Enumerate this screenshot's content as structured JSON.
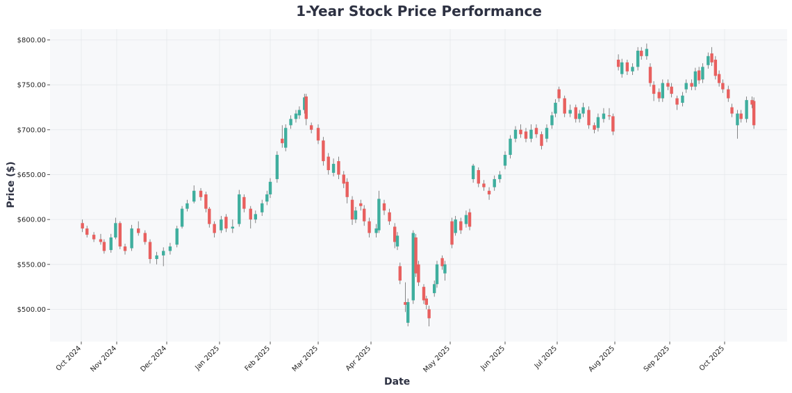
{
  "chart_data": {
    "type": "candlestick",
    "title": "1-Year Stock Price Performance",
    "xlabel": "Date",
    "ylabel": "Price ($)",
    "ylim": [
      464,
      812
    ],
    "yticks": [
      "$500.00",
      "$550.00",
      "$600.00",
      "$650.00",
      "$700.00",
      "$750.00",
      "$800.00"
    ],
    "ytick_values": [
      500,
      550,
      600,
      650,
      700,
      750,
      800
    ],
    "xticks": [
      {
        "date": "2024-10-01",
        "label": "Oct 2024"
      },
      {
        "date": "2024-11-01",
        "label": "Nov 2024"
      },
      {
        "date": "2024-12-01",
        "label": "Dec 2024"
      },
      {
        "date": "2025-01-01",
        "label": "Jan 2025"
      },
      {
        "date": "2025-02-01",
        "label": "Feb 2025"
      },
      {
        "date": "2025-03-01",
        "label": "Mar 2025"
      },
      {
        "date": "2025-04-01",
        "label": "Apr 2025"
      },
      {
        "date": "2025-05-01",
        "label": "May 2025"
      },
      {
        "date": "2025-06-01",
        "label": "Jun 2025"
      },
      {
        "date": "2025-07-01",
        "label": "Jul 2025"
      },
      {
        "date": "2025-08-01",
        "label": "Aug 2025"
      },
      {
        "date": "2025-09-01",
        "label": "Sep 2025"
      },
      {
        "date": "2025-10-01",
        "label": "Oct 2025"
      }
    ],
    "grid": true,
    "colors": {
      "up": "#3fae9e",
      "down": "#e8605f",
      "background": "#f7f8fa"
    },
    "columns": [
      "date",
      "open",
      "high",
      "low",
      "close"
    ],
    "candles": [
      [
        "2024-10-02",
        596,
        600,
        586,
        590
      ],
      [
        "2024-10-06",
        590,
        593,
        580,
        583
      ],
      [
        "2024-10-12",
        583,
        586,
        575,
        578
      ],
      [
        "2024-10-18",
        578,
        584,
        572,
        575
      ],
      [
        "2024-10-21",
        575,
        578,
        562,
        565
      ],
      [
        "2024-10-27",
        566,
        584,
        563,
        580
      ],
      [
        "2024-10-31",
        580,
        602,
        578,
        596
      ],
      [
        "2024-11-03",
        596,
        598,
        567,
        570
      ],
      [
        "2024-11-06",
        570,
        573,
        561,
        565
      ],
      [
        "2024-11-10",
        568,
        594,
        565,
        590
      ],
      [
        "2024-11-14",
        590,
        598,
        582,
        585
      ],
      [
        "2024-11-18",
        585,
        588,
        572,
        575
      ],
      [
        "2024-11-21",
        575,
        578,
        551,
        556
      ],
      [
        "2024-11-25",
        556,
        564,
        550,
        560
      ],
      [
        "2024-11-29",
        560,
        569,
        548,
        565
      ],
      [
        "2024-12-03",
        565,
        574,
        561,
        570
      ],
      [
        "2024-12-07",
        572,
        593,
        569,
        590
      ],
      [
        "2024-12-10",
        592,
        615,
        590,
        612
      ],
      [
        "2024-12-13",
        612,
        622,
        609,
        618
      ],
      [
        "2024-12-17",
        620,
        638,
        618,
        632
      ],
      [
        "2024-12-21",
        632,
        635,
        621,
        625
      ],
      [
        "2024-12-24",
        628,
        631,
        608,
        612
      ],
      [
        "2024-12-26",
        612,
        614,
        591,
        595
      ],
      [
        "2024-12-29",
        595,
        598,
        580,
        585
      ],
      [
        "2025-01-02",
        588,
        604,
        585,
        600
      ],
      [
        "2025-01-05",
        603,
        606,
        586,
        590
      ],
      [
        "2025-01-09",
        590,
        600,
        585,
        592
      ],
      [
        "2025-01-13",
        595,
        633,
        592,
        628
      ],
      [
        "2025-01-16",
        625,
        628,
        608,
        612
      ],
      [
        "2025-01-20",
        612,
        615,
        590,
        600
      ],
      [
        "2025-01-23",
        600,
        610,
        596,
        606
      ],
      [
        "2025-01-27",
        608,
        622,
        604,
        618
      ],
      [
        "2025-01-30",
        620,
        632,
        616,
        628
      ],
      [
        "2025-02-01",
        628,
        646,
        624,
        642
      ],
      [
        "2025-02-05",
        645,
        676,
        641,
        672
      ],
      [
        "2025-02-08",
        690,
        705,
        680,
        685
      ],
      [
        "2025-02-10",
        680,
        706,
        676,
        702
      ],
      [
        "2025-02-13",
        705,
        716,
        701,
        712
      ],
      [
        "2025-02-16",
        712,
        722,
        708,
        718
      ],
      [
        "2025-02-18",
        716,
        726,
        712,
        722
      ],
      [
        "2025-02-21",
        722,
        740,
        718,
        736
      ],
      [
        "2025-02-22",
        737,
        740,
        705,
        712
      ],
      [
        "2025-02-25",
        705,
        708,
        696,
        700
      ],
      [
        "2025-03-01",
        702,
        706,
        684,
        688
      ],
      [
        "2025-03-04",
        688,
        692,
        660,
        665
      ],
      [
        "2025-03-07",
        670,
        674,
        650,
        655
      ],
      [
        "2025-03-10",
        652,
        668,
        648,
        662
      ],
      [
        "2025-03-13",
        665,
        670,
        645,
        650
      ],
      [
        "2025-03-16",
        650,
        654,
        635,
        640
      ],
      [
        "2025-03-18",
        642,
        646,
        618,
        625
      ],
      [
        "2025-03-21",
        622,
        626,
        594,
        600
      ],
      [
        "2025-03-23",
        600,
        614,
        596,
        610
      ],
      [
        "2025-03-26",
        618,
        622,
        610,
        615
      ],
      [
        "2025-03-28",
        612,
        616,
        593,
        598
      ],
      [
        "2025-03-31",
        598,
        602,
        580,
        585
      ],
      [
        "2025-04-03",
        585,
        595,
        580,
        590
      ],
      [
        "2025-04-04",
        588,
        632,
        585,
        623
      ],
      [
        "2025-04-06",
        618,
        622,
        605,
        610
      ],
      [
        "2025-04-08",
        608,
        612,
        594,
        598
      ],
      [
        "2025-04-10",
        592,
        596,
        568,
        575
      ],
      [
        "2025-04-11",
        570,
        586,
        566,
        582
      ],
      [
        "2025-04-12",
        548,
        552,
        528,
        532
      ],
      [
        "2025-04-14",
        508,
        530,
        497,
        505
      ],
      [
        "2025-04-15",
        485,
        512,
        481,
        508
      ],
      [
        "2025-04-17",
        510,
        588,
        506,
        585
      ],
      [
        "2025-04-18",
        580,
        584,
        536,
        540
      ],
      [
        "2025-04-19",
        550,
        554,
        526,
        530
      ],
      [
        "2025-04-21",
        525,
        528,
        506,
        510
      ],
      [
        "2025-04-22",
        512,
        515,
        500,
        505
      ],
      [
        "2025-04-23",
        500,
        504,
        481,
        490
      ],
      [
        "2025-04-25",
        518,
        532,
        514,
        528
      ],
      [
        "2025-04-26",
        528,
        554,
        524,
        550
      ],
      [
        "2025-04-28",
        557,
        560,
        544,
        548
      ],
      [
        "2025-04-29",
        540,
        554,
        532,
        550
      ],
      [
        "2025-05-02",
        598,
        602,
        568,
        572
      ],
      [
        "2025-05-04",
        585,
        604,
        582,
        600
      ],
      [
        "2025-05-07",
        598,
        602,
        584,
        588
      ],
      [
        "2025-05-10",
        595,
        610,
        591,
        605
      ],
      [
        "2025-05-12",
        608,
        612,
        588,
        592
      ],
      [
        "2025-05-14",
        645,
        662,
        641,
        660
      ],
      [
        "2025-05-17",
        655,
        658,
        636,
        640
      ],
      [
        "2025-05-20",
        640,
        644,
        632,
        636
      ],
      [
        "2025-05-23",
        632,
        636,
        622,
        628
      ],
      [
        "2025-05-26",
        636,
        649,
        632,
        645
      ],
      [
        "2025-05-29",
        645,
        654,
        641,
        650
      ],
      [
        "2025-06-01",
        660,
        676,
        656,
        672
      ],
      [
        "2025-06-04",
        672,
        694,
        668,
        690
      ],
      [
        "2025-06-07",
        690,
        704,
        686,
        700
      ],
      [
        "2025-06-10",
        700,
        706,
        691,
        695
      ],
      [
        "2025-06-13",
        698,
        702,
        686,
        690
      ],
      [
        "2025-06-16",
        690,
        706,
        686,
        700
      ],
      [
        "2025-06-19",
        702,
        706,
        691,
        695
      ],
      [
        "2025-06-22",
        695,
        698,
        678,
        682
      ],
      [
        "2025-06-25",
        690,
        706,
        686,
        702
      ],
      [
        "2025-06-28",
        705,
        720,
        701,
        716
      ],
      [
        "2025-06-30",
        718,
        734,
        714,
        730
      ],
      [
        "2025-07-02",
        745,
        748,
        731,
        735
      ],
      [
        "2025-07-05",
        735,
        738,
        714,
        718
      ],
      [
        "2025-07-08",
        718,
        728,
        714,
        722
      ],
      [
        "2025-07-11",
        725,
        728,
        708,
        712
      ],
      [
        "2025-07-13",
        712,
        722,
        708,
        718
      ],
      [
        "2025-07-15",
        718,
        730,
        714,
        725
      ],
      [
        "2025-07-18",
        722,
        726,
        701,
        705
      ],
      [
        "2025-07-21",
        705,
        708,
        696,
        700
      ],
      [
        "2025-07-23",
        702,
        718,
        698,
        714
      ],
      [
        "2025-07-26",
        712,
        724,
        708,
        718
      ],
      [
        "2025-07-29",
        716,
        724,
        711,
        715
      ],
      [
        "2025-07-31",
        715,
        718,
        694,
        698
      ],
      [
        "2025-08-03",
        778,
        784,
        766,
        770
      ],
      [
        "2025-08-05",
        762,
        779,
        758,
        775
      ],
      [
        "2025-08-08",
        775,
        778,
        761,
        765
      ],
      [
        "2025-08-11",
        765,
        774,
        761,
        770
      ],
      [
        "2025-08-14",
        770,
        792,
        766,
        788
      ],
      [
        "2025-08-16",
        788,
        792,
        778,
        782
      ],
      [
        "2025-08-19",
        782,
        796,
        778,
        790
      ],
      [
        "2025-08-21",
        770,
        774,
        748,
        752
      ],
      [
        "2025-08-23",
        750,
        754,
        732,
        740
      ],
      [
        "2025-08-26",
        742,
        746,
        731,
        735
      ],
      [
        "2025-08-28",
        735,
        756,
        731,
        752
      ],
      [
        "2025-08-31",
        752,
        756,
        744,
        748
      ],
      [
        "2025-09-02",
        748,
        752,
        736,
        740
      ],
      [
        "2025-09-05",
        735,
        738,
        722,
        728
      ],
      [
        "2025-09-08",
        730,
        742,
        726,
        738
      ],
      [
        "2025-09-10",
        745,
        756,
        741,
        752
      ],
      [
        "2025-09-13",
        752,
        756,
        744,
        748
      ],
      [
        "2025-09-15",
        748,
        769,
        744,
        765
      ],
      [
        "2025-09-17",
        766,
        770,
        751,
        755
      ],
      [
        "2025-09-19",
        756,
        774,
        752,
        770
      ],
      [
        "2025-09-22",
        772,
        786,
        768,
        782
      ],
      [
        "2025-09-24",
        785,
        792,
        771,
        775
      ],
      [
        "2025-09-26",
        778,
        782,
        756,
        760
      ],
      [
        "2025-09-28",
        762,
        766,
        748,
        752
      ],
      [
        "2025-09-30",
        752,
        756,
        741,
        745
      ],
      [
        "2025-10-03",
        745,
        749,
        731,
        735
      ],
      [
        "2025-10-05",
        725,
        729,
        714,
        718
      ],
      [
        "2025-10-08",
        705,
        722,
        690,
        718
      ],
      [
        "2025-10-10",
        718,
        722,
        708,
        712
      ],
      [
        "2025-10-13",
        712,
        737,
        708,
        733
      ],
      [
        "2025-10-16",
        733,
        737,
        724,
        728
      ],
      [
        "2025-10-17",
        732,
        736,
        701,
        705
      ]
    ]
  }
}
